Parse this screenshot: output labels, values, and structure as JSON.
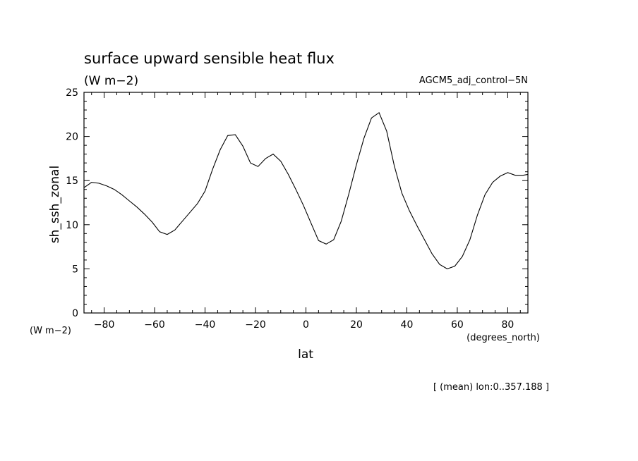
{
  "chart_data": {
    "type": "line",
    "title": "surface upward sensible heat flux",
    "units": "(W m−2)",
    "experiment": "AGCM5_adj_control−5N",
    "ylabel": "sh_ssh_zonal",
    "yunits": "(W m−2)",
    "xlabel": "lat",
    "xunits": "(degrees_north)",
    "footnote": "[ (mean) lon:0..357.188 ]",
    "xlim": [
      -88,
      88
    ],
    "ylim": [
      0,
      25
    ],
    "xticks": [
      -80,
      -60,
      -40,
      -20,
      0,
      20,
      40,
      60,
      80
    ],
    "yticks": [
      0,
      5,
      10,
      15,
      20,
      25
    ],
    "xtick_labels": [
      "−80",
      "−60",
      "−40",
      "−20",
      "0",
      "20",
      "40",
      "60",
      "80"
    ],
    "ytick_labels": [
      "0",
      "5",
      "10",
      "15",
      "20",
      "25"
    ],
    "series": [
      {
        "x": [
          -88,
          -85,
          -82,
          -79,
          -76,
          -73,
          -70,
          -67,
          -64,
          -61,
          -58,
          -55,
          -52,
          -49,
          -46,
          -43,
          -40,
          -37,
          -34,
          -31,
          -28,
          -25,
          -22,
          -19,
          -16,
          -13,
          -10,
          -7,
          -4,
          -1,
          2,
          5,
          8,
          11,
          14,
          17,
          20,
          23,
          26,
          29,
          32,
          35,
          38,
          41,
          44,
          47,
          50,
          53,
          56,
          59,
          62,
          65,
          68,
          71,
          74,
          77,
          80,
          83,
          86,
          88
        ],
        "y": [
          14.2,
          14.8,
          14.7,
          14.4,
          14.0,
          13.4,
          12.7,
          12.0,
          11.2,
          10.3,
          9.2,
          8.9,
          9.4,
          10.4,
          11.4,
          12.4,
          13.8,
          16.3,
          18.5,
          20.1,
          20.2,
          18.9,
          17.0,
          16.6,
          17.5,
          18.0,
          17.2,
          15.7,
          14.0,
          12.2,
          10.2,
          8.2,
          7.8,
          8.3,
          10.4,
          13.5,
          16.8,
          19.8,
          22.1,
          22.7,
          20.6,
          16.7,
          13.6,
          11.6,
          9.9,
          8.3,
          6.7,
          5.5,
          5.0,
          5.3,
          6.4,
          8.3,
          11.1,
          13.4,
          14.8,
          15.5,
          15.9,
          15.6,
          15.6,
          15.7
        ]
      }
    ]
  }
}
